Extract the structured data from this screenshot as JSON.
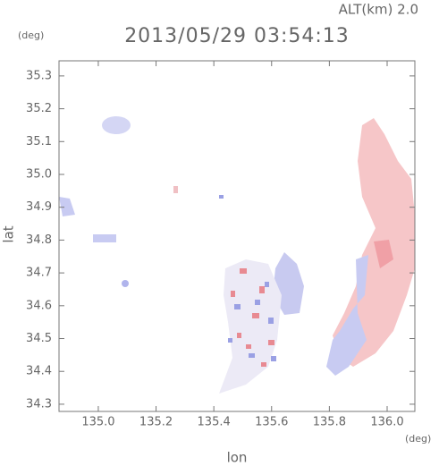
{
  "chart_data": {
    "type": "heatmap",
    "title": "2013/05/29 03:54:13",
    "annotation": "ALT(km) 2.0",
    "xlabel": "lon",
    "ylabel": "lat",
    "xunit": "(deg)",
    "yunit": "(deg)",
    "xlim": [
      134.864,
      136.096
    ],
    "ylim": [
      34.278,
      35.346
    ],
    "xticks": [
      {
        "value": 135,
        "label": "135.0"
      },
      135.2,
      135.4,
      135.6,
      135.8,
      {
        "value": 136,
        "label": "136.0"
      }
    ],
    "yticks": [
      34.3,
      34.4,
      34.5,
      34.6,
      34.7,
      34.8,
      34.9,
      {
        "value": 35,
        "label": "35.0"
      },
      35.1,
      35.2,
      35.3
    ]
  }
}
